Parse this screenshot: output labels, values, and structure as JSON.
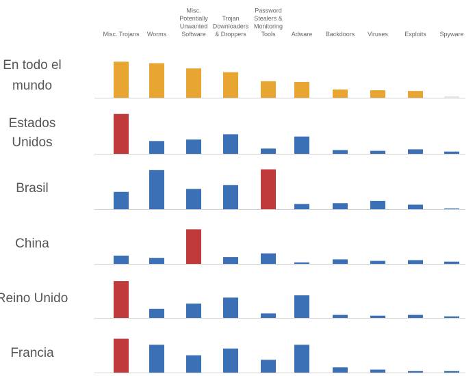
{
  "chart_data": {
    "type": "bar",
    "layout": "small-multiples",
    "categories": [
      [
        "Misc. Trojans"
      ],
      [
        "Worms"
      ],
      [
        "Misc.",
        "Potentially",
        "Unwanted",
        "Software"
      ],
      [
        "Trojan",
        "Downloaders",
        "& Droppers"
      ],
      [
        "Password",
        "Stealers &",
        "Monitoring",
        "Tools"
      ],
      [
        "Adware"
      ],
      [
        "Backdoors"
      ],
      [
        "Viruses"
      ],
      [
        "Exploits"
      ],
      [
        "Spyware"
      ]
    ],
    "grid": false,
    "legend": "none",
    "ylim": [
      0,
      60
    ],
    "colors": {
      "worldwide": "#E8A531",
      "default": "#3B6FB6",
      "highlight": "#C0393B",
      "baseline": "#D0D0D0"
    },
    "series": [
      {
        "name_lines": [
          "En todo el",
          "mundo"
        ],
        "values": [
          48,
          46,
          39,
          34,
          22,
          21,
          11,
          10,
          9,
          2
        ],
        "highlight_index": -1
      },
      {
        "name_lines": [
          "Estados",
          "Unidos"
        ],
        "values": [
          53,
          17,
          19,
          26,
          7,
          23,
          5,
          4,
          6,
          3
        ],
        "highlight_index": 0
      },
      {
        "name_lines": [
          "Brasil"
        ],
        "values": [
          23,
          52,
          27,
          32,
          53,
          7,
          8,
          11,
          6,
          1
        ],
        "highlight_index": 4
      },
      {
        "name_lines": [
          "China"
        ],
        "values": [
          11,
          8,
          46,
          9,
          14,
          2,
          6,
          4,
          5,
          3
        ],
        "highlight_index": 2
      },
      {
        "name_lines": [
          "Reino Unido"
        ],
        "values": [
          49,
          12,
          19,
          27,
          6,
          30,
          4,
          3,
          4,
          2
        ],
        "highlight_index": 0
      },
      {
        "name_lines": [
          "Francia"
        ],
        "values": [
          45,
          37,
          23,
          32,
          17,
          37,
          7,
          4,
          2,
          2
        ],
        "highlight_index": 0
      }
    ]
  }
}
